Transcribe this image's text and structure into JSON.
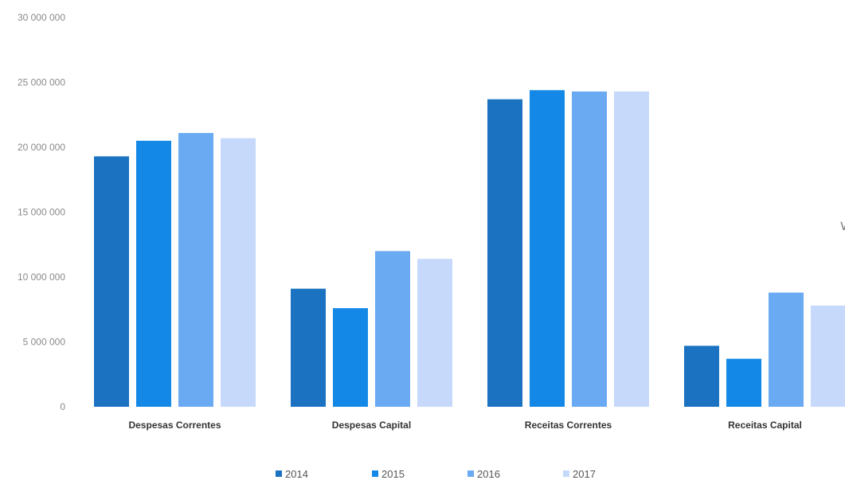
{
  "chart_data": {
    "type": "bar",
    "categories": [
      "Despesas Correntes",
      "Despesas Capital",
      "Receitas Correntes",
      "Receitas Capital"
    ],
    "series": [
      {
        "name": "2014",
        "color": "#1a72c0",
        "values": [
          19300000,
          9100000,
          23700000,
          4700000
        ]
      },
      {
        "name": "2015",
        "color": "#1488e6",
        "values": [
          20500000,
          7600000,
          24400000,
          3700000
        ]
      },
      {
        "name": "2016",
        "color": "#6aaaf2",
        "values": [
          21100000,
          12000000,
          24300000,
          8800000
        ]
      },
      {
        "name": "2017",
        "color": "#c6d9fb",
        "values": [
          20700000,
          11400000,
          24300000,
          7800000
        ]
      }
    ],
    "ylim": [
      0,
      30000000
    ],
    "yticks": [
      0,
      5000000,
      10000000,
      15000000,
      20000000,
      25000000,
      30000000
    ],
    "ytick_labels": [
      "0",
      "5 000 000",
      "10 000 000",
      "15 000 000",
      "20 000 000",
      "25 000 000",
      "30 000 000"
    ],
    "grid": false,
    "legend_position": "bottom"
  },
  "legend": {
    "marker": "■",
    "items": [
      "2014",
      "2015",
      "2016",
      "2017"
    ]
  },
  "edge_mark": "∨"
}
